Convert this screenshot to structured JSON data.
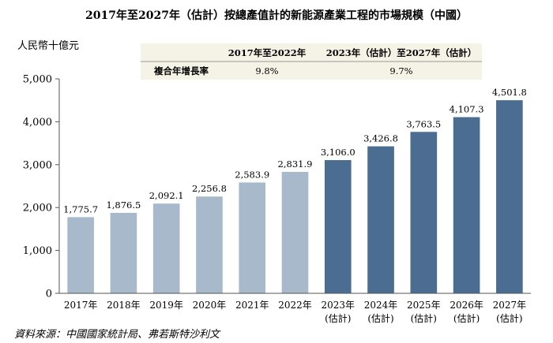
{
  "chart_data": {
    "type": "bar",
    "title": "2017年至2027年（估計）按總產值計的新能源產業工程的市場規模（中國）",
    "ylabel": "人民幣十億元",
    "ylim": [
      0,
      5000
    ],
    "yticks": [
      "0",
      "1,000",
      "2,000",
      "3,000",
      "4,000",
      "5,000"
    ],
    "ytick_values": [
      0,
      1000,
      2000,
      3000,
      4000,
      5000
    ],
    "grid": false,
    "categories": [
      "2017年",
      "2018年",
      "2019年",
      "2020年",
      "2021年",
      "2022年",
      "2023年",
      "2024年",
      "2025年",
      "2026年",
      "2027年"
    ],
    "category_sublabels": [
      "",
      "",
      "",
      "",
      "",
      "",
      "(估計)",
      "(估計)",
      "(估計)",
      "(估計)",
      "(估計)"
    ],
    "values": [
      1775.7,
      1876.5,
      2092.1,
      2256.8,
      2583.9,
      2831.9,
      3106.0,
      3426.8,
      3763.5,
      4107.3,
      4501.8
    ],
    "value_labels": [
      "1,775.7",
      "1,876.5",
      "2,092.1",
      "2,256.8",
      "2,583.9",
      "2,831.9",
      "3,106.0",
      "3,426.8",
      "3,763.5",
      "4,107.3",
      "4,501.8"
    ],
    "estimated": [
      false,
      false,
      false,
      false,
      false,
      false,
      true,
      true,
      true,
      true,
      true
    ],
    "colors": {
      "historical": "#a8b9cc",
      "estimated": "#4a6d91",
      "axis": "#555555",
      "table_bg": "#f5f2e6"
    },
    "cagr_table": {
      "row_label": "複合年增長率",
      "columns": [
        "2017年至2022年",
        "2023年（估計）至2027年（估計）"
      ],
      "values": [
        "9.8%",
        "9.7%"
      ]
    },
    "source": "資料來源：中國國家統計局、弗若斯特沙利文"
  }
}
